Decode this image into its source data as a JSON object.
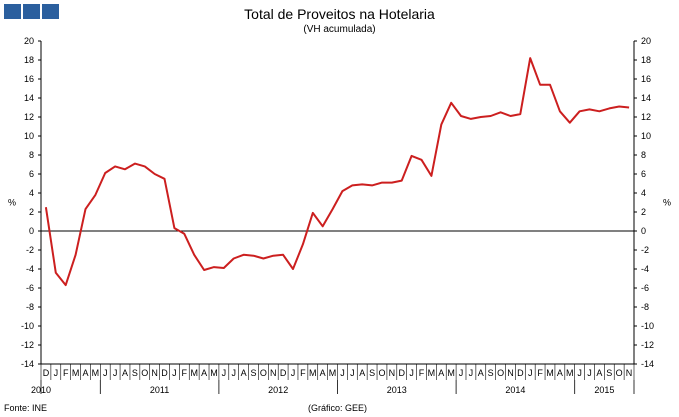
{
  "header": {
    "title": "Total de Proveitos na Hotelaria",
    "subtitle": "(VH acumulada)"
  },
  "footer": {
    "source": "Fonte: INE",
    "credit": "(Gráfico: GEE)"
  },
  "colors": {
    "line": "#cc1f1f",
    "logo": "#2b5f9e",
    "axis": "#000000"
  },
  "chart_data": {
    "type": "line",
    "ylabel": "%",
    "ylim": [
      -14,
      20
    ],
    "yticks": [
      20,
      18,
      16,
      14,
      12,
      10,
      8,
      6,
      4,
      2,
      0,
      -2,
      -4,
      -6,
      -8,
      -10,
      -12,
      -14
    ],
    "grid": false,
    "month_labels": [
      "D",
      "J",
      "F",
      "M",
      "A",
      "M",
      "J",
      "J",
      "A",
      "S",
      "O",
      "N",
      "D",
      "J",
      "F",
      "M",
      "A",
      "M",
      "J",
      "J",
      "A",
      "S",
      "O",
      "N",
      "D",
      "J",
      "F",
      "M",
      "A",
      "M",
      "J",
      "J",
      "A",
      "S",
      "O",
      "N",
      "D",
      "J",
      "F",
      "M",
      "A",
      "M",
      "J",
      "J",
      "A",
      "S",
      "O",
      "N",
      "D",
      "J",
      "F",
      "M",
      "A",
      "M",
      "J",
      "J",
      "A",
      "S",
      "O",
      "N"
    ],
    "year_labels": [
      {
        "label": "2010",
        "index": 0
      },
      {
        "label": "2011",
        "index": 6
      },
      {
        "label": "2012",
        "index": 18
      },
      {
        "label": "2013",
        "index": 30
      },
      {
        "label": "2014",
        "index": 42
      },
      {
        "label": "2015",
        "index": 54
      }
    ],
    "series": [
      {
        "values": [
          2.5,
          -4.4,
          -5.7,
          -2.5,
          2.3,
          3.8,
          6.1,
          6.8,
          6.5,
          7.1,
          6.8,
          6.0,
          5.5,
          0.3,
          -0.3,
          -2.5,
          -4.1,
          -3.8,
          -3.9,
          -2.9,
          -2.5,
          -2.6,
          -2.9,
          -2.6,
          -2.5,
          -4.0,
          -1.4,
          1.9,
          0.5,
          2.3,
          4.2,
          4.8,
          4.9,
          4.8,
          5.1,
          5.1,
          5.3,
          7.9,
          7.5,
          5.8,
          11.2,
          13.5,
          12.1,
          11.8,
          12.0,
          12.1,
          12.5,
          12.1,
          12.3,
          18.2,
          15.4,
          15.4,
          12.6,
          11.4,
          12.6,
          12.8,
          12.6,
          12.9,
          13.1,
          13.0
        ]
      }
    ]
  }
}
